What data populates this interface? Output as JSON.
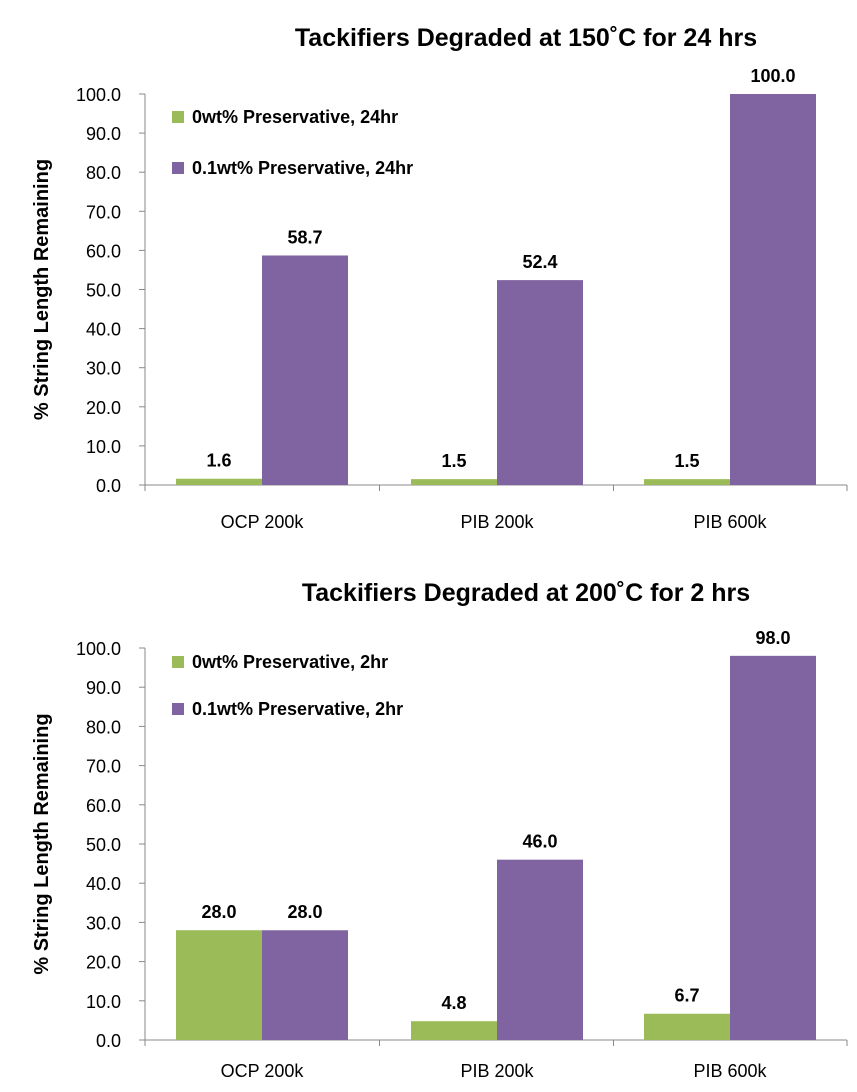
{
  "colors": {
    "green": "#9BBB59",
    "purple": "#8064A2",
    "axis": "#888888"
  },
  "chart_data": [
    {
      "type": "bar",
      "title": "Tackifiers Degraded at 150˚C for  24 hrs",
      "ylabel": "% String Length Remaining",
      "ylim": [
        0,
        100
      ],
      "yticks": [
        "0.0",
        "10.0",
        "20.0",
        "30.0",
        "40.0",
        "50.0",
        "60.0",
        "70.0",
        "80.0",
        "90.0",
        "100.0"
      ],
      "categories": [
        "OCP 200k",
        "PIB 200k",
        "PIB 600k"
      ],
      "legend_position": "top-left",
      "grid": false,
      "series": [
        {
          "name": "0wt% Preservative, 24hr",
          "color": "#9BBB59",
          "values": [
            1.6,
            1.5,
            1.5
          ],
          "labels": [
            "1.6",
            "1.5",
            "1.5"
          ]
        },
        {
          "name": "0.1wt% Preservative, 24hr",
          "color": "#8064A2",
          "values": [
            58.7,
            52.4,
            100.0
          ],
          "labels": [
            "58.7",
            "52.4",
            "100.0"
          ]
        }
      ]
    },
    {
      "type": "bar",
      "title": "Tackifiers Degraded at 200˚C for  2 hrs",
      "ylabel": "% String Length Remaining",
      "ylim": [
        0,
        100
      ],
      "yticks": [
        "0.0",
        "10.0",
        "20.0",
        "30.0",
        "40.0",
        "50.0",
        "60.0",
        "70.0",
        "80.0",
        "90.0",
        "100.0"
      ],
      "categories": [
        "OCP 200k",
        "PIB 200k",
        "PIB 600k"
      ],
      "legend_position": "top-left",
      "grid": false,
      "series": [
        {
          "name": "0wt% Preservative, 2hr",
          "color": "#9BBB59",
          "values": [
            28.0,
            4.8,
            6.7
          ],
          "labels": [
            "28.0",
            "4.8",
            "6.7"
          ]
        },
        {
          "name": "0.1wt% Preservative, 2hr",
          "color": "#8064A2",
          "values": [
            28.0,
            46.0,
            98.0
          ],
          "labels": [
            "28.0",
            "46.0",
            "98.0"
          ]
        }
      ]
    }
  ]
}
